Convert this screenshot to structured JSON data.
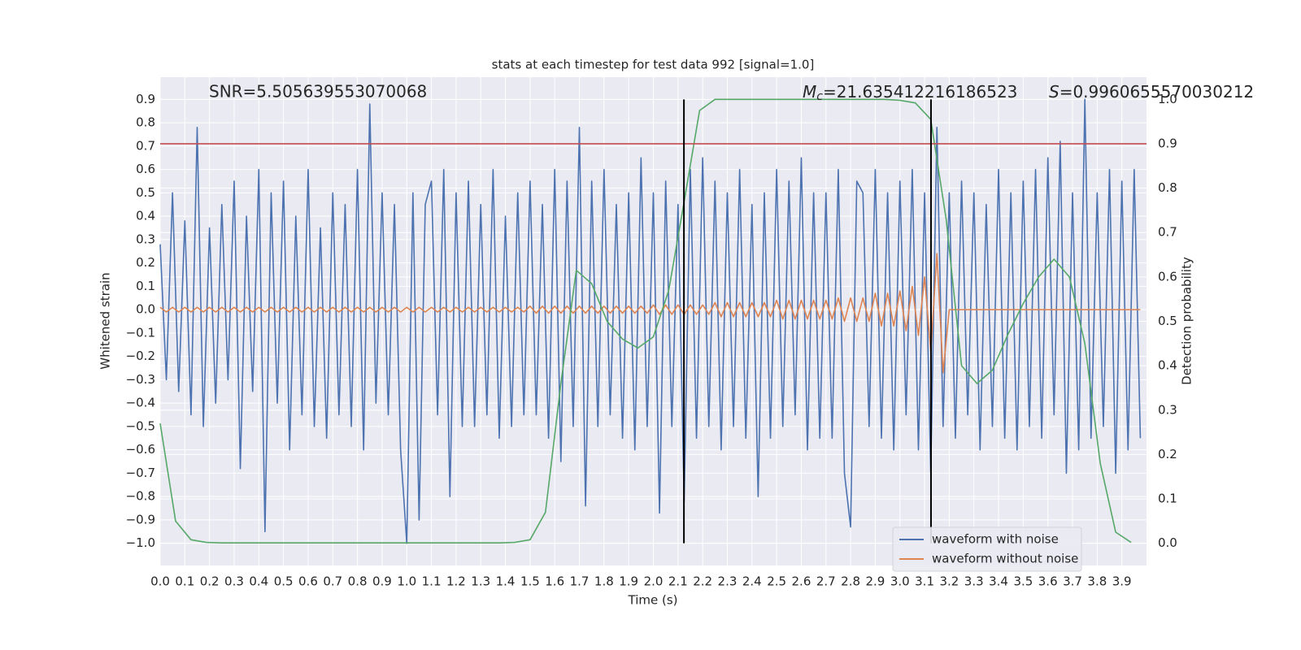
{
  "chart_data": {
    "type": "line",
    "title": "stats at each timestep for test data 992 [signal=1.0]",
    "xlabel": "Time (s)",
    "ylabel": "Whitened strain",
    "y2label": "Detection probability",
    "grid": true,
    "legend": "lower right",
    "annotations": [
      {
        "text": "SNR=5.505639553070068"
      },
      {
        "symbol": "M",
        "sub": "c",
        "text": "=21.635412216186523"
      },
      {
        "symbol": "S",
        "text": "=0.9960655570030212"
      }
    ],
    "xlim": [
      0,
      4.0
    ],
    "xticks": [
      {
        "value": 0,
        "label": "0.0"
      },
      0.1,
      0.2,
      0.3,
      0.4,
      0.5,
      0.6,
      0.7,
      0.8,
      0.9,
      {
        "value": 1,
        "label": "1.0"
      },
      1.1,
      1.2,
      1.3,
      1.4,
      1.5,
      1.6,
      1.7,
      1.8,
      1.9,
      {
        "value": 2,
        "label": "2.0"
      },
      2.1,
      2.2,
      2.3,
      2.4,
      2.5,
      2.6,
      2.7,
      2.8,
      2.9,
      {
        "value": 3,
        "label": "3.0"
      },
      3.1,
      3.2,
      3.3,
      3.4,
      3.5,
      3.6,
      3.7,
      3.8,
      3.9
    ],
    "ylim": [
      -1.095,
      0.995
    ],
    "yticks": [
      {
        "value": -1,
        "label": "−1.0"
      },
      {
        "value": -0.9,
        "label": "−0.9"
      },
      {
        "value": -0.8,
        "label": "−0.8"
      },
      {
        "value": -0.7,
        "label": "−0.7"
      },
      {
        "value": -0.6,
        "label": "−0.6"
      },
      {
        "value": -0.5,
        "label": "−0.5"
      },
      {
        "value": -0.4,
        "label": "−0.4"
      },
      {
        "value": -0.3,
        "label": "−0.3"
      },
      {
        "value": -0.2,
        "label": "−0.2"
      },
      {
        "value": -0.1,
        "label": "−0.1"
      },
      {
        "value": 0,
        "label": "0.0"
      },
      0.1,
      0.2,
      0.3,
      0.4,
      0.5,
      0.6,
      0.7,
      0.8,
      0.9
    ],
    "y2lim": [
      -0.05,
      1.05
    ],
    "y2ticks": [
      {
        "value": 0,
        "label": "0.0"
      },
      0.1,
      0.2,
      0.3,
      0.4,
      0.5,
      0.6,
      0.7,
      0.8,
      0.9,
      {
        "value": 1,
        "label": "1.0"
      }
    ],
    "threshold": {
      "value": 0.9,
      "axis": "y2",
      "color": "#c44e52"
    },
    "vlines": {
      "x": [
        2.124,
        3.126
      ],
      "color": "#000000"
    },
    "x": [
      0,
      0.025,
      0.05,
      0.075,
      0.1,
      0.125,
      0.15,
      0.175,
      0.2,
      0.225,
      0.25,
      0.275,
      0.3,
      0.325,
      0.35,
      0.375,
      0.4,
      0.425,
      0.45,
      0.475,
      0.5,
      0.525,
      0.55,
      0.575,
      0.6,
      0.625,
      0.65,
      0.675,
      0.7,
      0.725,
      0.75,
      0.775,
      0.8,
      0.825,
      0.85,
      0.875,
      0.9,
      0.925,
      0.95,
      0.975,
      1,
      1.025,
      1.05,
      1.075,
      1.1,
      1.125,
      1.15,
      1.175,
      1.2,
      1.225,
      1.25,
      1.275,
      1.3,
      1.325,
      1.35,
      1.375,
      1.4,
      1.425,
      1.45,
      1.475,
      1.5,
      1.525,
      1.55,
      1.575,
      1.6,
      1.625,
      1.65,
      1.675,
      1.7,
      1.725,
      1.75,
      1.775,
      1.8,
      1.825,
      1.85,
      1.875,
      1.9,
      1.925,
      1.95,
      1.975,
      2,
      2.025,
      2.05,
      2.075,
      2.1,
      2.125,
      2.15,
      2.175,
      2.2,
      2.225,
      2.25,
      2.275,
      2.3,
      2.325,
      2.35,
      2.375,
      2.4,
      2.425,
      2.45,
      2.475,
      2.5,
      2.525,
      2.55,
      2.575,
      2.6,
      2.625,
      2.65,
      2.675,
      2.7,
      2.725,
      2.75,
      2.775,
      2.8,
      2.825,
      2.85,
      2.875,
      2.9,
      2.925,
      2.95,
      2.975,
      3,
      3.025,
      3.05,
      3.075,
      3.1,
      3.125,
      3.15,
      3.175,
      3.2,
      3.225,
      3.25,
      3.275,
      3.3,
      3.325,
      3.35,
      3.375,
      3.4,
      3.425,
      3.45,
      3.475,
      3.5,
      3.525,
      3.55,
      3.575,
      3.6,
      3.625,
      3.65,
      3.675,
      3.7,
      3.725,
      3.75,
      3.775,
      3.8,
      3.825,
      3.85,
      3.875,
      3.9,
      3.925,
      3.95,
      3.975
    ],
    "series": [
      {
        "name": "waveform with noise",
        "color": "#4c72b0",
        "values": [
          0.28,
          -0.3,
          0.5,
          -0.35,
          0.38,
          -0.45,
          0.78,
          -0.5,
          0.35,
          -0.4,
          0.45,
          -0.3,
          0.55,
          -0.68,
          0.4,
          -0.35,
          0.6,
          -0.95,
          0.5,
          -0.4,
          0.55,
          -0.6,
          0.4,
          -0.45,
          0.6,
          -0.5,
          0.35,
          -0.55,
          0.5,
          -0.45,
          0.45,
          -0.5,
          0.6,
          -0.6,
          0.88,
          -0.4,
          0.5,
          -0.45,
          0.45,
          -0.6,
          -1.0,
          0.5,
          -0.9,
          0.45,
          0.55,
          -0.45,
          0.6,
          -0.8,
          0.5,
          -0.5,
          0.55,
          -0.5,
          0.45,
          -0.45,
          0.6,
          -0.55,
          0.4,
          -0.5,
          0.5,
          -0.45,
          0.55,
          -0.45,
          0.45,
          -0.55,
          0.6,
          -0.65,
          0.55,
          -0.5,
          0.78,
          -0.84,
          0.55,
          -0.5,
          0.6,
          -0.45,
          0.45,
          -0.55,
          0.5,
          -0.6,
          0.65,
          -0.5,
          0.5,
          -0.87,
          0.55,
          -0.5,
          0.45,
          -0.82,
          0.6,
          -0.55,
          0.65,
          -0.5,
          0.55,
          -0.6,
          0.5,
          -0.5,
          0.6,
          -0.55,
          0.45,
          -0.8,
          0.5,
          -0.55,
          0.6,
          -0.5,
          0.55,
          -0.45,
          0.65,
          -0.6,
          0.5,
          -0.55,
          0.5,
          -0.55,
          0.6,
          -0.7,
          -0.93,
          0.55,
          0.5,
          -0.5,
          0.6,
          -0.55,
          0.5,
          -0.6,
          0.55,
          -0.45,
          0.6,
          -0.6,
          0.5,
          -0.7,
          0.78,
          -0.5,
          0.5,
          -0.55,
          0.55,
          -0.45,
          0.5,
          -0.6,
          0.45,
          -0.5,
          0.6,
          -0.55,
          0.5,
          -0.6,
          0.55,
          -0.5,
          0.6,
          -0.55,
          0.65,
          -0.45,
          0.72,
          -0.7,
          0.5,
          -0.6,
          0.9,
          -0.55,
          0.5,
          -0.5,
          0.6,
          -0.7,
          0.55,
          -0.6,
          0.6,
          -0.55
        ]
      },
      {
        "name": "waveform without noise",
        "color": "#dd8452",
        "values": [
          0.01,
          -0.01,
          0.01,
          -0.01,
          0.01,
          -0.01,
          0.01,
          -0.01,
          0.01,
          -0.01,
          0.01,
          -0.01,
          0.01,
          -0.01,
          0.01,
          -0.01,
          0.01,
          -0.01,
          0.01,
          -0.01,
          0.01,
          -0.01,
          0.01,
          -0.01,
          0.01,
          -0.01,
          0.01,
          -0.01,
          0.01,
          -0.01,
          0.01,
          -0.01,
          0.01,
          -0.01,
          0.01,
          -0.01,
          0.01,
          -0.01,
          0.01,
          -0.01,
          0.01,
          -0.01,
          0.01,
          -0.01,
          0.01,
          -0.01,
          0.01,
          -0.01,
          0.01,
          -0.01,
          0.01,
          -0.01,
          0.01,
          -0.01,
          0.01,
          -0.01,
          0.01,
          -0.01,
          0.01,
          -0.01,
          0.015,
          -0.015,
          0.015,
          -0.015,
          0.015,
          -0.015,
          0.015,
          -0.015,
          0.015,
          -0.015,
          0.015,
          -0.015,
          0.015,
          -0.015,
          0.015,
          -0.015,
          0.015,
          -0.015,
          0.015,
          -0.015,
          0.02,
          -0.02,
          0.02,
          -0.02,
          0.02,
          -0.02,
          0.02,
          -0.02,
          0.02,
          -0.02,
          0.03,
          -0.03,
          0.03,
          -0.03,
          0.03,
          -0.03,
          0.03,
          -0.03,
          0.03,
          -0.03,
          0.04,
          -0.04,
          0.04,
          -0.04,
          0.04,
          -0.04,
          0.04,
          -0.04,
          0.04,
          -0.04,
          0.05,
          -0.05,
          0.05,
          -0.05,
          0.05,
          -0.05,
          0.07,
          -0.07,
          0.07,
          -0.07,
          0.08,
          -0.09,
          0.1,
          -0.11,
          0.14,
          -0.18,
          0.24,
          -0.27,
          0,
          0,
          0,
          0,
          0,
          0,
          0,
          0,
          0,
          0,
          0,
          0,
          0,
          0,
          0,
          0,
          0,
          0,
          0,
          0,
          0,
          0,
          0,
          0,
          0,
          0,
          0,
          0,
          0,
          0,
          0,
          0
        ]
      },
      {
        "axis": "y2",
        "color": "#55a868",
        "x": [
          0,
          0.0625,
          0.125,
          0.1875,
          0.25,
          0.3125,
          0.375,
          0.4375,
          0.5,
          0.5625,
          0.625,
          0.6875,
          0.75,
          0.8125,
          0.875,
          0.9375,
          1,
          1.0625,
          1.125,
          1.1875,
          1.25,
          1.3125,
          1.375,
          1.4375,
          1.5,
          1.5625,
          1.625,
          1.6875,
          1.75,
          1.8125,
          1.875,
          1.9375,
          2,
          2.0625,
          2.125,
          2.1875,
          2.25,
          2.3125,
          2.375,
          2.4375,
          2.5,
          2.5625,
          2.625,
          2.6875,
          2.75,
          2.8125,
          2.875,
          2.9375,
          3,
          3.0625,
          3.125,
          3.1875,
          3.25,
          3.3125,
          3.375,
          3.4375,
          3.5,
          3.5625,
          3.625,
          3.6875,
          3.75,
          3.8125,
          3.875,
          3.9375
        ],
        "values": [
          0.27,
          0.05,
          0.008,
          0.002,
          0.001,
          0.001,
          0.001,
          0.001,
          0.001,
          0.001,
          0.001,
          0.001,
          0.001,
          0.001,
          0.001,
          0.001,
          0.001,
          0.001,
          0.001,
          0.001,
          0.001,
          0.001,
          0.001,
          0.002,
          0.008,
          0.07,
          0.36,
          0.615,
          0.585,
          0.5,
          0.46,
          0.44,
          0.465,
          0.57,
          0.77,
          0.975,
          1.0,
          1.0,
          1.0,
          1.0,
          1.0,
          1.0,
          1.0,
          1.0,
          1.0,
          1.0,
          1.0,
          1.0,
          0.998,
          0.992,
          0.955,
          0.73,
          0.4,
          0.36,
          0.39,
          0.47,
          0.54,
          0.6,
          0.64,
          0.6,
          0.45,
          0.18,
          0.025,
          0.002
        ]
      }
    ]
  }
}
